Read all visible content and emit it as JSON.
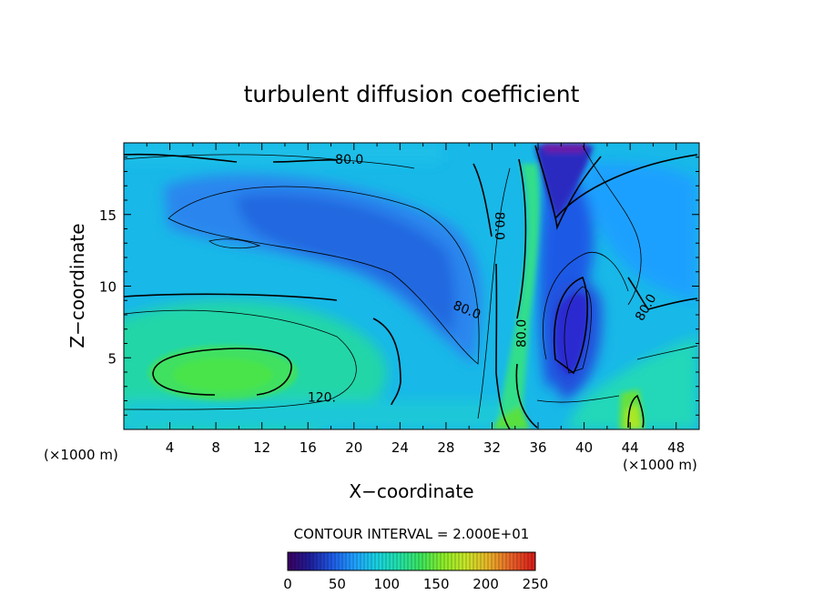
{
  "chart_data": {
    "type": "heatmap",
    "title": "turbulent diffusion coefficient",
    "xlabel": "X−coordinate",
    "ylabel": "Z−coordinate",
    "x_unit_left": "(×1000 m)",
    "x_unit_right": "(×1000 m)",
    "xlim": [
      0,
      50
    ],
    "ylim": [
      0,
      20
    ],
    "x_ticks": [
      4,
      8,
      12,
      16,
      20,
      24,
      28,
      32,
      36,
      40,
      44,
      48
    ],
    "y_ticks": [
      5,
      10,
      15
    ],
    "grid": false,
    "contour_interval_text": "CONTOUR INTERVAL = 2.000E+01",
    "contour_interval": 20,
    "colorbar": {
      "min": 0,
      "max": 250,
      "ticks": [
        0,
        50,
        100,
        150,
        200,
        250
      ],
      "colors": [
        "#3a0060",
        "#1e1e9a",
        "#1e5ae6",
        "#1ea0ff",
        "#18d2e0",
        "#22e0a8",
        "#3ce45a",
        "#8cec28",
        "#c8e628",
        "#e8b428",
        "#e86428",
        "#d81818"
      ]
    },
    "contour_labels": [
      {
        "text": "80.0",
        "x": 19.6,
        "z": 18.8,
        "rotate": 0
      },
      {
        "text": "80.0",
        "x": 29.8,
        "z": 8.3,
        "rotate": 22
      },
      {
        "text": "120.",
        "x": 17.2,
        "z": 2.2,
        "rotate": 0
      },
      {
        "text": "80.0",
        "x": 32.6,
        "z": 14.2,
        "rotate": 90
      },
      {
        "text": "80.0",
        "x": 34.6,
        "z": 6.7,
        "rotate": -90
      },
      {
        "text": "80.0",
        "x": 45.4,
        "z": 8.5,
        "rotate": -60
      }
    ]
  }
}
